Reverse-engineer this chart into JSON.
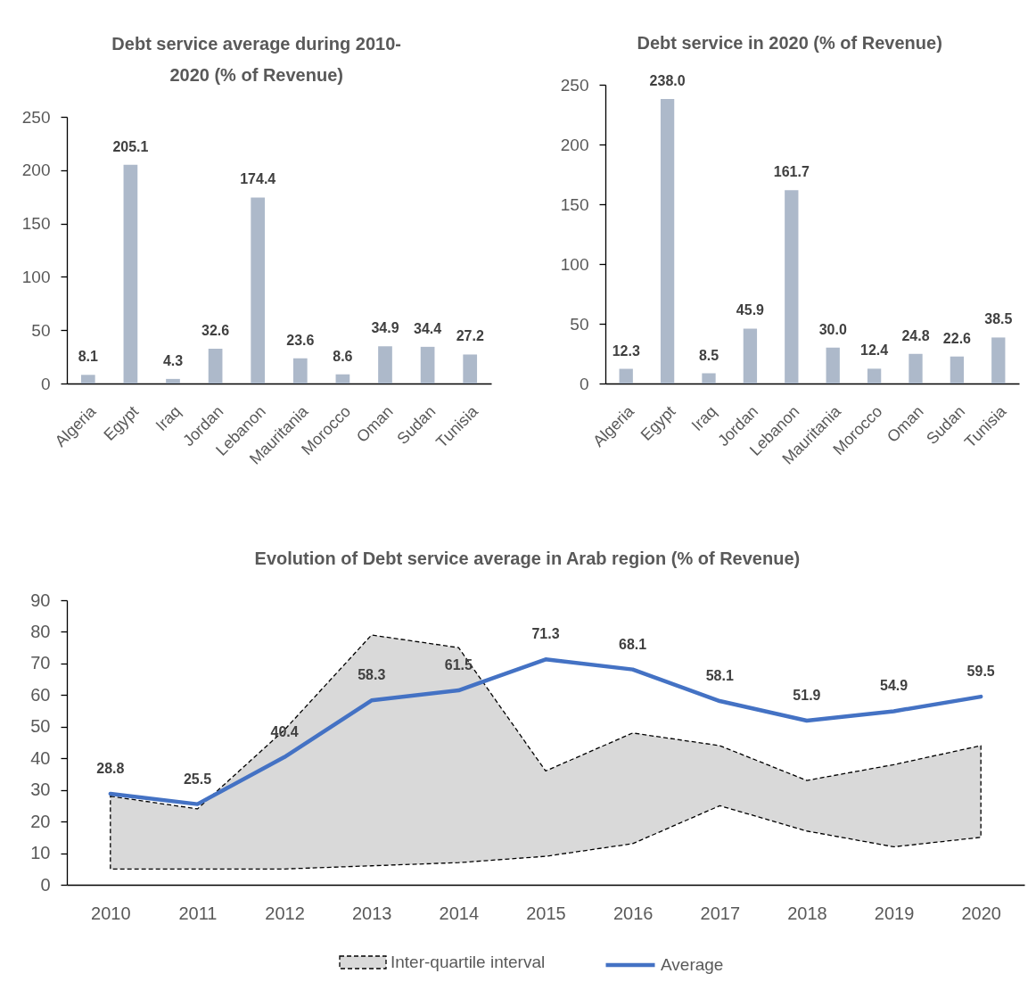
{
  "chart_data": [
    {
      "type": "bar",
      "title": "Debt service average during 2010-2020 (% of Revenue)",
      "categories": [
        "Algeria",
        "Egypt",
        "Iraq",
        "Jordan",
        "Lebanon",
        "Mauritania",
        "Morocco",
        "Oman",
        "Sudan",
        "Tunisia"
      ],
      "values": [
        8.1,
        205.1,
        4.3,
        32.6,
        174.4,
        23.6,
        8.6,
        34.9,
        34.4,
        27.2
      ],
      "color": "#adb9ca",
      "ylim": [
        0,
        250
      ],
      "yticks": [
        0,
        50,
        100,
        150,
        200,
        250
      ],
      "data_labels": true
    },
    {
      "type": "bar",
      "title": "Debt service in 2020 (% of Revenue)",
      "categories": [
        "Algeria",
        "Egypt",
        "Iraq",
        "Jordan",
        "Lebanon",
        "Mauritania",
        "Morocco",
        "Oman",
        "Sudan",
        "Tunisia"
      ],
      "values": [
        12.3,
        238.0,
        8.5,
        45.9,
        161.7,
        30.0,
        12.4,
        24.8,
        22.6,
        38.5
      ],
      "value_labels": [
        "12.3",
        "238.0",
        "8.5",
        "45.9",
        "161.7",
        "30.0",
        "12.4",
        "24.8",
        "22.6",
        "38.5"
      ],
      "color": "#adb9ca",
      "ylim": [
        0,
        250
      ],
      "yticks": [
        0,
        50,
        100,
        150,
        200,
        250
      ]
    },
    {
      "type": "line",
      "title": "Evolution of Debt service average in Arab region (% of Revenue)",
      "categories": [
        "2010",
        "2011",
        "2012",
        "2013",
        "2014",
        "2015",
        "2016",
        "2017",
        "2018",
        "2019",
        "2020"
      ],
      "ylim": [
        0,
        90
      ],
      "yticks": [
        0,
        10,
        20,
        30,
        40,
        50,
        60,
        70,
        80,
        90
      ],
      "legend": "bottom",
      "series": [
        {
          "name": "Inter-quartile interval",
          "type": "area",
          "color": "#d9d9d9",
          "line_style": "dashed",
          "values": [
            null,
            null,
            null,
            null,
            null,
            null,
            null,
            null,
            null,
            null,
            null
          ],
          "lower": [
            5,
            5,
            5,
            6,
            7,
            9,
            13,
            25,
            17,
            12,
            15
          ],
          "upper": [
            28,
            24,
            49,
            79,
            75,
            36,
            48,
            44,
            33,
            38,
            44
          ]
        },
        {
          "name": "Average",
          "type": "line",
          "color": "#4472c4",
          "values": [
            28.8,
            25.5,
            40.4,
            58.3,
            61.5,
            71.3,
            68.1,
            58.1,
            51.9,
            54.9,
            59.5
          ],
          "value_labels": [
            "28.8",
            "25.5",
            "40.4",
            "58.3",
            "61.5",
            "71.3",
            "68.1",
            "58.1",
            "51.9",
            "54.9",
            "59.5"
          ]
        }
      ]
    }
  ]
}
